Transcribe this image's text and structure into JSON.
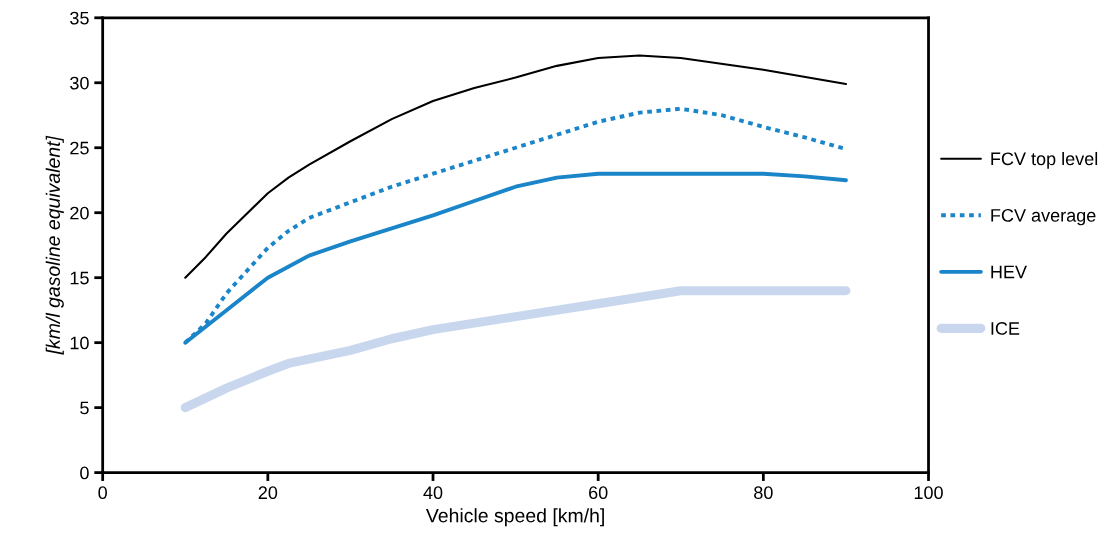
{
  "chart_data": {
    "type": "line",
    "xlabel": "Vehicle speed [km/h]",
    "ylabel": "[km/l gasoline equivalent]",
    "xlim": [
      0,
      100
    ],
    "xticks": [
      0,
      20,
      40,
      60,
      80,
      100
    ],
    "ylim": [
      0,
      35
    ],
    "yticks": [
      0,
      5,
      10,
      15,
      20,
      25,
      30,
      35
    ],
    "grid": false,
    "legend": "right",
    "marker": "none",
    "series": [
      {
        "name": "FCV top level",
        "color": "#000000",
        "line_style": "solid",
        "x": [
          10,
          12.5,
          15,
          20,
          22.5,
          25,
          30,
          35,
          40,
          45,
          50,
          55,
          60,
          65,
          70,
          80,
          90
        ],
        "values": [
          15,
          16.6,
          18.4,
          21.5,
          22.7,
          23.7,
          25.5,
          27.2,
          28.6,
          29.6,
          30.4,
          31.3,
          31.9,
          32.1,
          31.9,
          31,
          29.9
        ]
      },
      {
        "name": "FCV average",
        "color": "#1a85c8",
        "line_style": "dotted",
        "x": [
          10,
          12.5,
          15,
          20,
          22.5,
          25,
          30,
          35,
          40,
          45,
          50,
          55,
          60,
          65,
          70,
          75,
          80,
          85,
          90
        ],
        "values": [
          10,
          11.5,
          13.8,
          17.3,
          18.6,
          19.6,
          20.8,
          22,
          23,
          24,
          25,
          26,
          27,
          27.7,
          28,
          27.5,
          26.6,
          25.8,
          24.9
        ]
      },
      {
        "name": "HEV",
        "color": "#1a85c8",
        "line_style": "solid",
        "x": [
          10,
          15,
          20,
          25,
          30,
          35,
          40,
          45,
          50,
          55,
          60,
          70,
          80,
          85,
          90
        ],
        "values": [
          10,
          12.5,
          15,
          16.7,
          17.8,
          18.8,
          19.8,
          20.9,
          22,
          22.7,
          23,
          23,
          23,
          22.8,
          22.5
        ]
      },
      {
        "name": "ICE",
        "color": "#c9d7ee",
        "line_style": "solid",
        "x": [
          10,
          15,
          20,
          22.5,
          30,
          35,
          40,
          50,
          60,
          70,
          90
        ],
        "values": [
          5,
          6.5,
          7.8,
          8.4,
          9.4,
          10.3,
          11,
          12,
          13,
          14,
          14
        ]
      }
    ]
  }
}
